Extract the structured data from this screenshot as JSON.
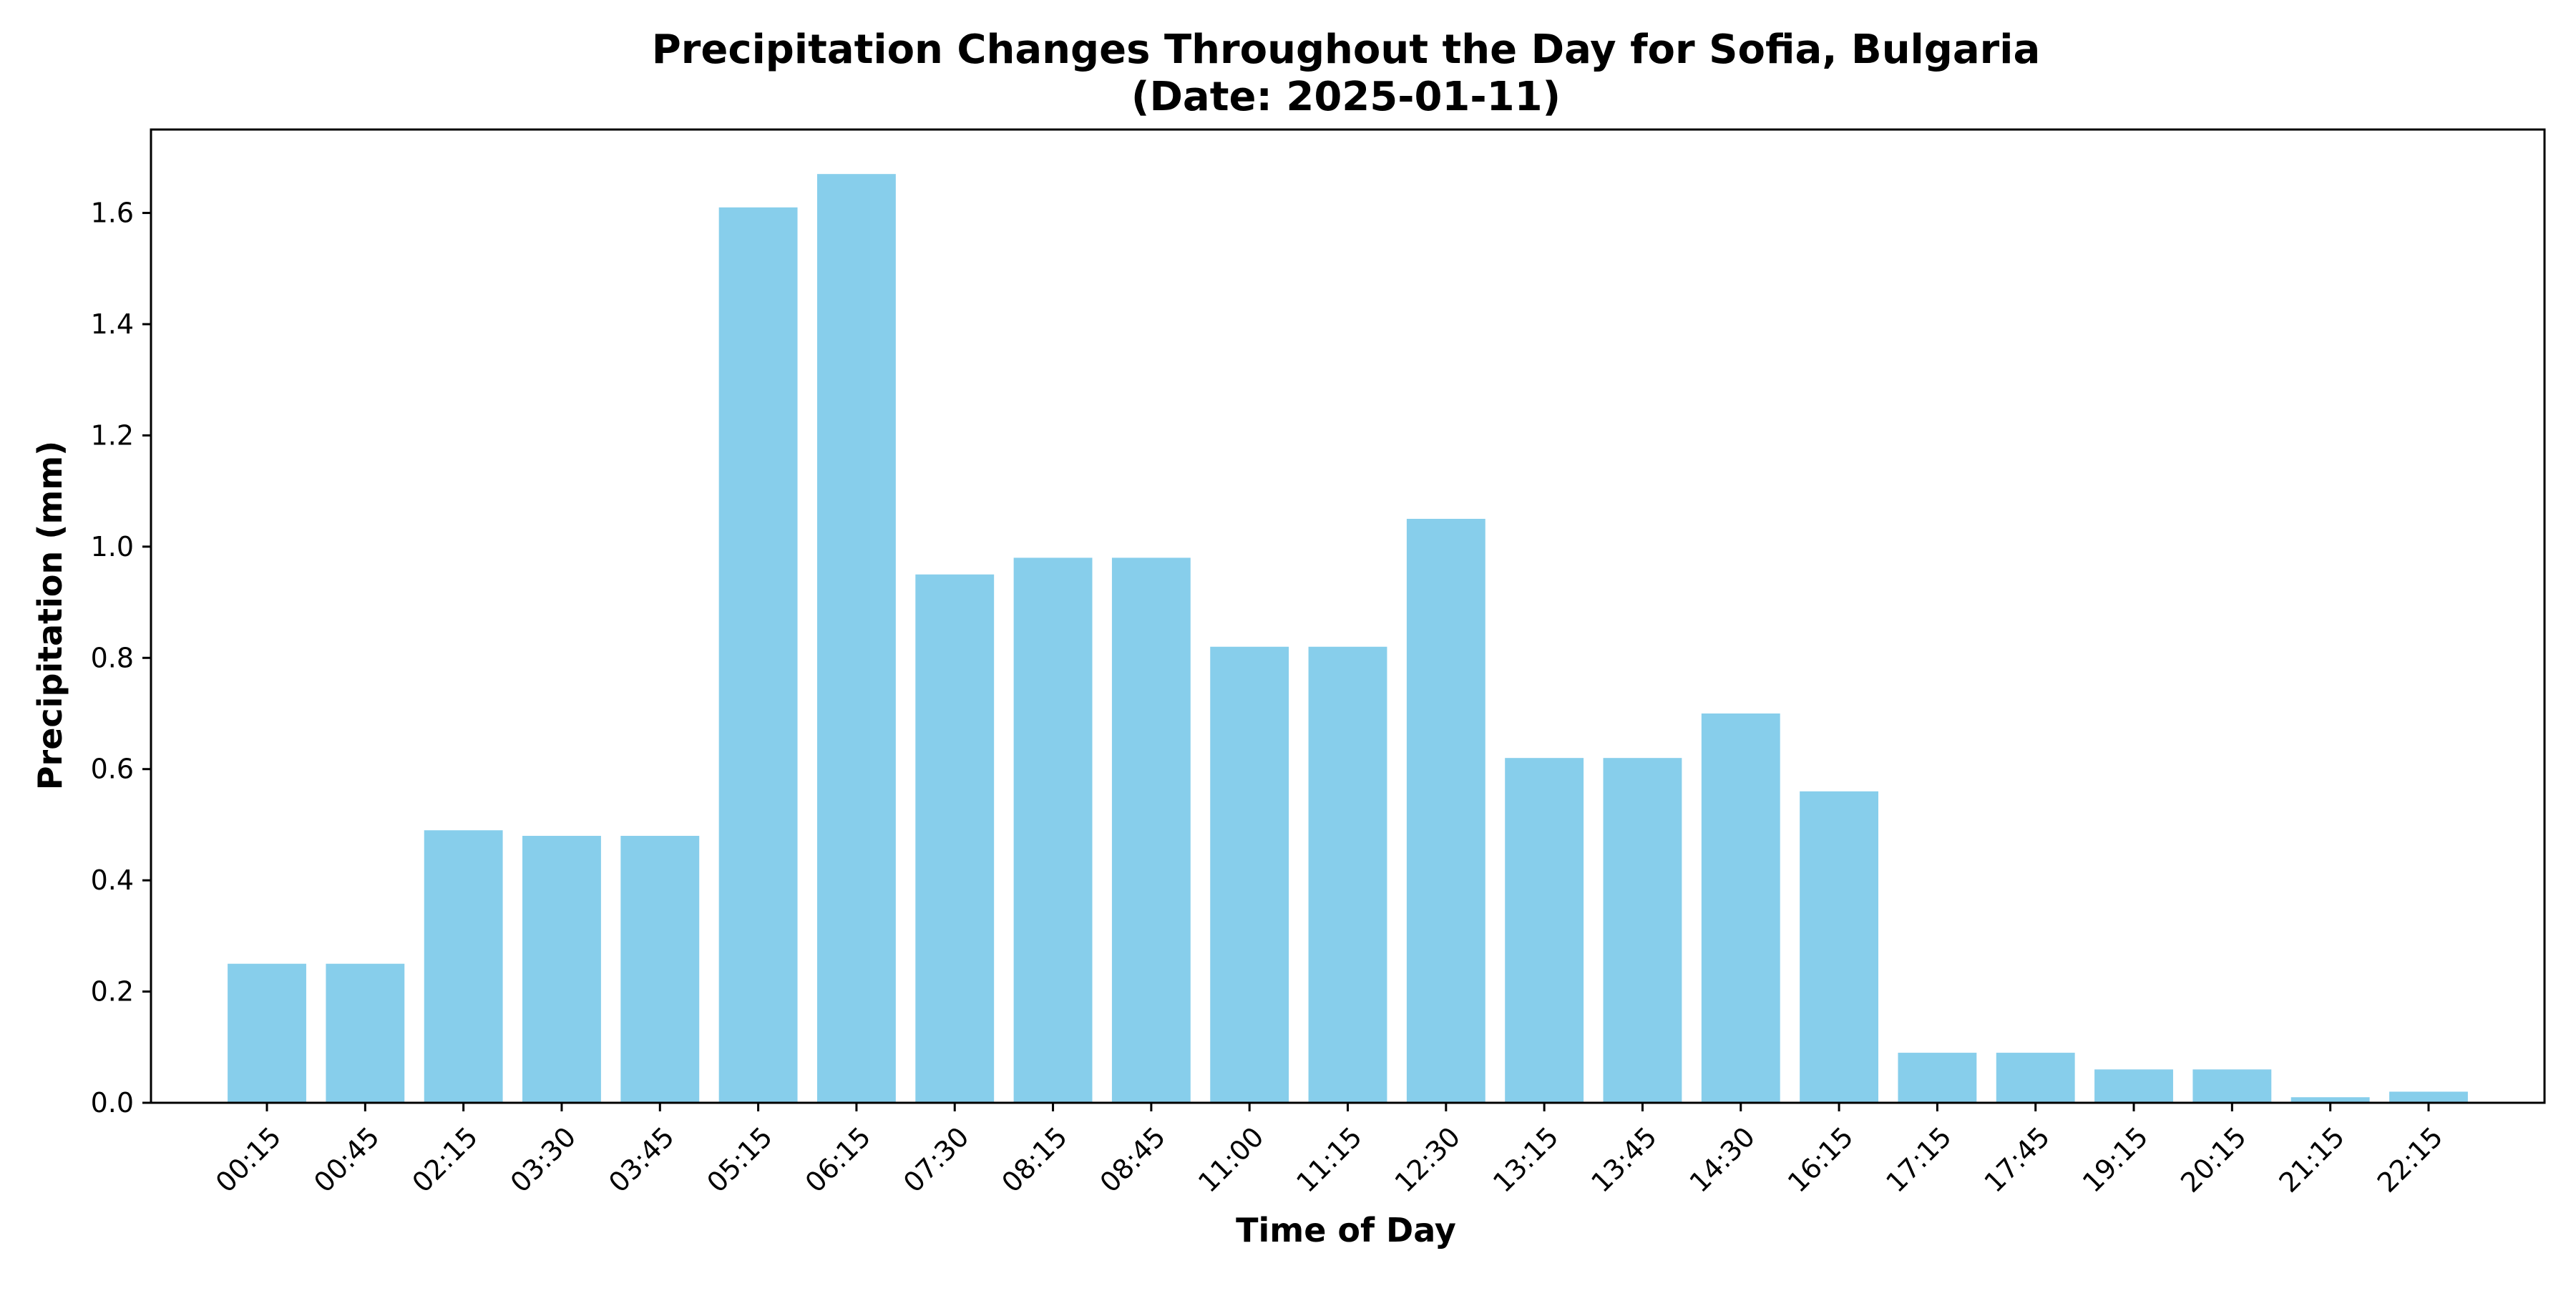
{
  "colors": {
    "bar": "#87ceeb",
    "axis": "#000000",
    "background": "#ffffff"
  },
  "chart_data": {
    "type": "bar",
    "title": "Precipitation Changes Throughout the Day for Sofia, Bulgaria",
    "subtitle": "(Date: 2025-01-11)",
    "xlabel": "Time of Day",
    "ylabel": "Precipitation (mm)",
    "ylim": [
      0,
      1.75
    ],
    "yticks": [
      0.0,
      0.2,
      0.4,
      0.6,
      0.8,
      1.0,
      1.2,
      1.4,
      1.6
    ],
    "grid": false,
    "categories": [
      "00:15",
      "00:45",
      "02:15",
      "03:30",
      "03:45",
      "05:15",
      "06:15",
      "07:30",
      "08:15",
      "08:45",
      "11:00",
      "11:15",
      "12:30",
      "13:15",
      "13:45",
      "14:30",
      "16:15",
      "17:15",
      "17:45",
      "19:15",
      "20:15",
      "21:15",
      "22:15"
    ],
    "values": [
      0.25,
      0.25,
      0.49,
      0.48,
      0.48,
      1.61,
      1.67,
      0.95,
      0.98,
      0.98,
      0.82,
      0.82,
      1.05,
      0.62,
      0.62,
      0.7,
      0.56,
      0.09,
      0.09,
      0.06,
      0.06,
      0.01,
      0.02
    ]
  }
}
